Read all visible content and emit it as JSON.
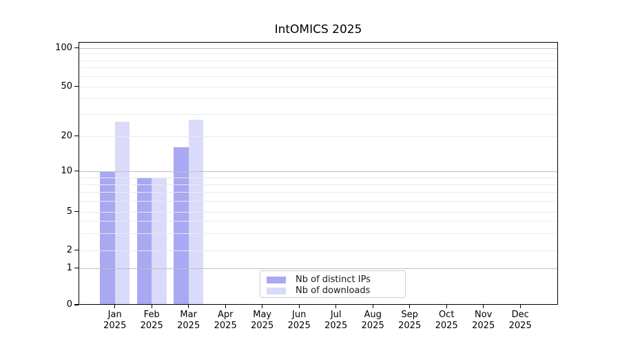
{
  "window": {
    "background": "#ffffff"
  },
  "chart_data": {
    "type": "bar",
    "title": "IntOMICS 2025",
    "categories": [
      "Jan 2025",
      "Feb 2025",
      "Mar 2025",
      "Apr 2025",
      "May 2025",
      "Jun 2025",
      "Jul 2025",
      "Aug 2025",
      "Sep 2025",
      "Oct 2025",
      "Nov 2025",
      "Dec 2025"
    ],
    "months": [
      "Jan",
      "Feb",
      "Mar",
      "Apr",
      "May",
      "Jun",
      "Jul",
      "Aug",
      "Sep",
      "Oct",
      "Nov",
      "Dec"
    ],
    "year": "2025",
    "series": [
      {
        "name": "Nb of distinct IPs",
        "color": "#a8a8f3",
        "values": [
          10,
          9,
          16,
          0,
          0,
          0,
          0,
          0,
          0,
          0,
          0,
          0
        ]
      },
      {
        "name": "Nb of downloads",
        "color": "#dadafa",
        "values": [
          26,
          9,
          27,
          0,
          0,
          0,
          0,
          0,
          0,
          0,
          0,
          0
        ]
      }
    ],
    "xlabel": "",
    "ylabel": "",
    "y_axis": {
      "scale": "log-like with zero baseline",
      "ticks": [
        0,
        1,
        2,
        5,
        10,
        20,
        50,
        100
      ],
      "minor_gridlines": [
        2,
        3,
        4,
        5,
        6,
        7,
        8,
        9,
        20,
        30,
        40,
        50,
        60,
        70,
        80,
        90
      ],
      "major_gridlines": [
        1,
        10,
        100
      ],
      "top_value": 104
    },
    "legend": {
      "position": "bottom-center",
      "entries": [
        "Nb of distinct IPs",
        "Nb of downloads"
      ]
    },
    "grid": true,
    "colors": {
      "minor_grid": "#ebebeb",
      "major_grid": "#c0c0c0",
      "axis": "#000000",
      "tick_label": "#000000",
      "legend_border": "#cccccc",
      "legend_bg": "#ffffff",
      "legend_text": "#191919"
    }
  }
}
